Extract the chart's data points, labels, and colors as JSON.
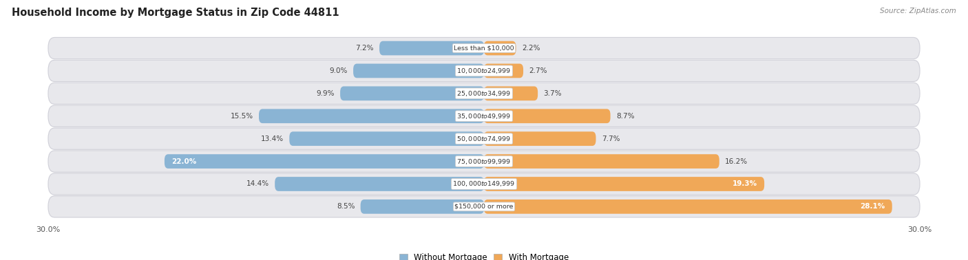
{
  "title": "Household Income by Mortgage Status in Zip Code 44811",
  "source": "Source: ZipAtlas.com",
  "categories": [
    "Less than $10,000",
    "$10,000 to $24,999",
    "$25,000 to $34,999",
    "$35,000 to $49,999",
    "$50,000 to $74,999",
    "$75,000 to $99,999",
    "$100,000 to $149,999",
    "$150,000 or more"
  ],
  "without_mortgage": [
    7.2,
    9.0,
    9.9,
    15.5,
    13.4,
    22.0,
    14.4,
    8.5
  ],
  "with_mortgage": [
    2.2,
    2.7,
    3.7,
    8.7,
    7.7,
    16.2,
    19.3,
    28.1
  ],
  "color_without": "#8ab4d4",
  "color_without_light": "#b8d4e8",
  "color_with": "#f0a858",
  "color_with_light": "#f5cc99",
  "xlim": 30.0,
  "bg_color": "#ffffff",
  "row_bg": "#e8e8ec",
  "row_border": "#d0d0d8"
}
